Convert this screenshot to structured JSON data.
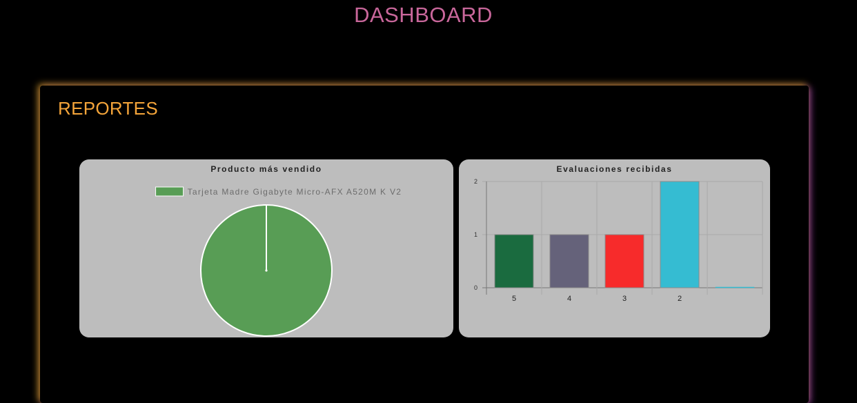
{
  "page_title": "DASHBOARD",
  "panel": {
    "heading": "REPORTES"
  },
  "chart_data": [
    {
      "type": "pie",
      "title": "Producto más vendido",
      "legend_placement": "top",
      "slices": [
        {
          "label": "Tarjeta Madre Gigabyte Micro-AFX A520M K V2",
          "value": 1,
          "color": "#589d55"
        }
      ]
    },
    {
      "type": "bar",
      "title": "Evaluaciones recibidas",
      "categories": [
        "5",
        "4",
        "3",
        "2",
        ""
      ],
      "values": [
        1,
        1,
        1,
        2,
        0
      ],
      "colors": [
        "#1a6b3f",
        "#65627a",
        "#f72b2b",
        "#35bcd2",
        "#35bcd2"
      ],
      "ylim": [
        0,
        2
      ],
      "yticks": [
        0,
        1,
        2
      ],
      "grid": true,
      "legend": false
    }
  ]
}
